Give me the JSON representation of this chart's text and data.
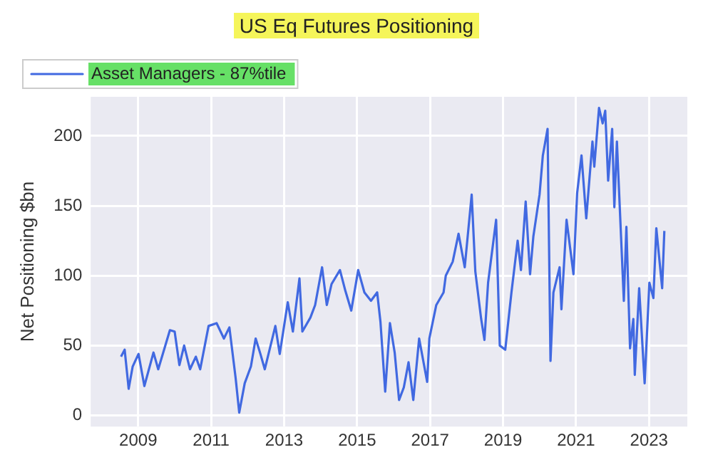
{
  "chart_data": {
    "type": "line",
    "title": "US Eq Futures Positioning",
    "ylabel": "Net Positioning $bn",
    "x": [
      2008.53,
      2008.63,
      2008.74,
      2008.85,
      2009.01,
      2009.17,
      2009.42,
      2009.55,
      2009.87,
      2010.0,
      2010.13,
      2010.26,
      2010.42,
      2010.58,
      2010.7,
      2010.93,
      2011.15,
      2011.35,
      2011.5,
      2011.67,
      2011.77,
      2011.92,
      2012.09,
      2012.22,
      2012.35,
      2012.47,
      2012.76,
      2012.88,
      2013.1,
      2013.24,
      2013.42,
      2013.5,
      2013.72,
      2013.85,
      2014.04,
      2014.17,
      2014.3,
      2014.53,
      2014.68,
      2014.84,
      2015.03,
      2015.2,
      2015.38,
      2015.55,
      2015.64,
      2015.77,
      2015.9,
      2016.03,
      2016.15,
      2016.28,
      2016.41,
      2016.54,
      2016.7,
      2016.92,
      2016.98,
      2017.17,
      2017.37,
      2017.43,
      2017.62,
      2017.78,
      2017.95,
      2018.14,
      2018.24,
      2018.4,
      2018.49,
      2018.59,
      2018.81,
      2018.91,
      2019.06,
      2019.23,
      2019.4,
      2019.49,
      2019.62,
      2019.74,
      2019.83,
      2020.0,
      2020.09,
      2020.22,
      2020.3,
      2020.38,
      2020.55,
      2020.6,
      2020.74,
      2020.93,
      2021.03,
      2021.15,
      2021.28,
      2021.45,
      2021.5,
      2021.63,
      2021.73,
      2021.8,
      2021.88,
      2021.99,
      2022.05,
      2022.12,
      2022.31,
      2022.38,
      2022.48,
      2022.57,
      2022.61,
      2022.73,
      2022.88,
      2023.01,
      2023.12,
      2023.2,
      2023.36,
      2023.42
    ],
    "series": [
      {
        "name": "Asset Managers - 87%tile",
        "color": "#4169e1",
        "values": [
          42,
          47,
          19,
          35,
          44,
          21,
          45,
          33,
          61,
          60,
          36,
          50,
          33,
          42,
          33,
          64,
          66,
          55,
          63,
          27,
          2,
          23,
          35,
          55,
          44,
          33,
          64,
          44,
          81,
          60,
          98,
          60,
          70,
          79,
          106,
          79,
          94,
          104,
          89,
          75,
          104,
          88,
          82,
          88,
          67,
          17,
          66,
          45,
          11,
          20,
          38,
          11,
          55,
          24,
          55,
          79,
          88,
          100,
          110,
          130,
          106,
          158,
          103,
          69,
          54,
          95,
          140,
          50,
          47,
          88,
          125,
          104,
          153,
          101,
          128,
          158,
          186,
          205,
          39,
          88,
          106,
          76,
          140,
          101,
          159,
          186,
          141,
          196,
          178,
          220,
          209,
          218,
          168,
          205,
          149,
          196,
          82,
          135,
          48,
          69,
          29,
          91,
          23,
          95,
          84,
          134,
          91,
          132
        ]
      }
    ],
    "xlim": [
      2007.7,
      2024.05
    ],
    "xticks": [
      2009,
      2011,
      2013,
      2015,
      2017,
      2019,
      2021,
      2023
    ],
    "ylim": [
      -8,
      228
    ],
    "yticks": [
      0,
      50,
      100,
      150,
      200
    ],
    "grid": true,
    "legend": "top left",
    "marker": "none",
    "line_style": "solid"
  }
}
